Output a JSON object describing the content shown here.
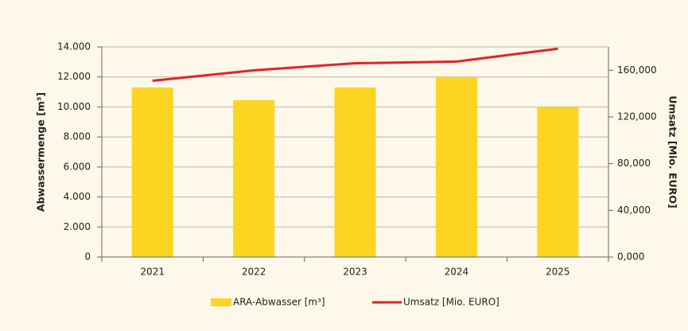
{
  "chart_data": {
    "type": "bar_line",
    "categories": [
      "2021",
      "2022",
      "2023",
      "2024",
      "2025"
    ],
    "series": [
      {
        "name": "ARA-Abwasser [m³]",
        "color": "#fcd523",
        "type": "bar",
        "values": [
          11300,
          10450,
          11300,
          12000,
          10000
        ]
      },
      {
        "name": "Umsatz [Mio. EURO]",
        "color": "#e3212b",
        "type": "line",
        "axis": "y2",
        "values": [
          151000,
          160000,
          166000,
          167500,
          178500
        ]
      }
    ],
    "ylabel": "Abwassermenge [m³]",
    "y2label": "Umsatz [Mio. EURO]",
    "ylim": [
      0,
      14000
    ],
    "yticks": [
      0,
      {
        "value": 2000,
        "label": "2.000"
      },
      {
        "value": 4000,
        "label": "4.000"
      },
      {
        "value": 6000,
        "label": "6.000"
      },
      {
        "value": 8000,
        "label": "8.000"
      },
      {
        "value": 10000,
        "label": "10.000"
      },
      {
        "value": 12000,
        "label": "12.000"
      },
      {
        "value": 14000,
        "label": "14.000"
      }
    ],
    "y2lim": [
      0,
      180000
    ],
    "y2ticks": [
      {
        "value": 0,
        "label": "0,000"
      },
      {
        "value": 40000,
        "label": "40,000"
      },
      {
        "value": 80000,
        "label": "80,000"
      },
      {
        "value": 120000,
        "label": "120,000"
      },
      {
        "value": 160000,
        "label": "160,000"
      }
    ],
    "grid": true,
    "legend": "bottom"
  }
}
